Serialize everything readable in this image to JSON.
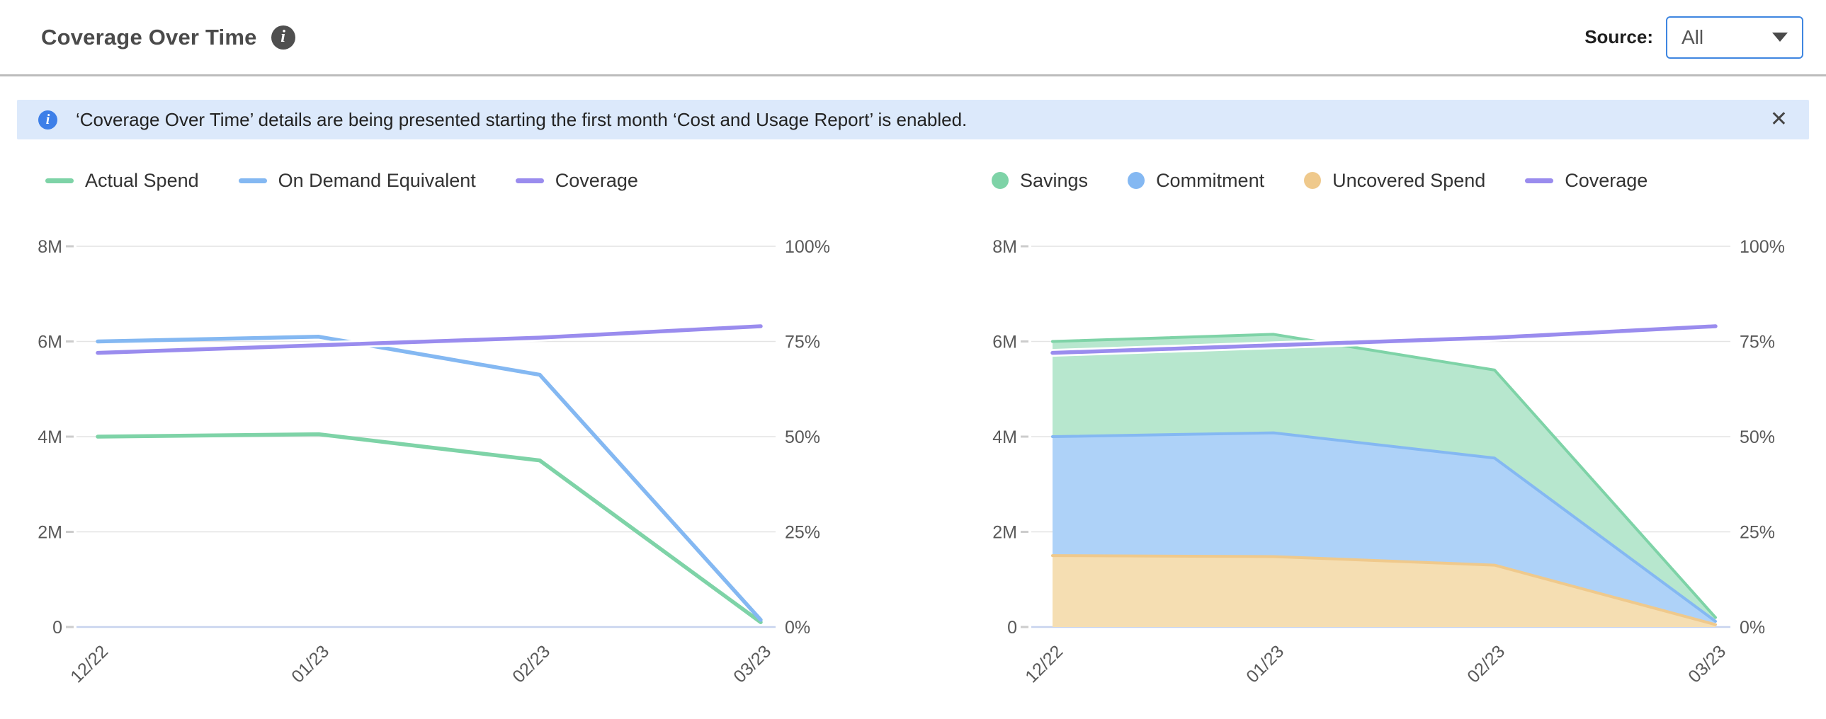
{
  "header": {
    "title": "Coverage Over Time",
    "source_label": "Source:",
    "source_value": "All"
  },
  "icons": {
    "info": "i",
    "close": "✕"
  },
  "banner": {
    "text": "‘Coverage Over Time’ details are being presented starting the first month ‘Cost and Usage Report’ is enabled."
  },
  "colors": {
    "green": "#7ed3a7",
    "blue": "#84b8f2",
    "purple": "#9a8cee",
    "orange": "#efc98c",
    "green_fill": "#b7e7ce",
    "blue_fill": "#aed2f8",
    "orange_fill": "#f5deb2",
    "gridline": "#e4e4e4",
    "zero_line": "#c7d3ee",
    "tick": "#cccccc",
    "axis_text": "#595959",
    "banner_bg": "#dce9fb",
    "banner_icon_bg": "#3d7fe8",
    "dropdown_border": "#3f86e0",
    "divider": "#bcbcbc"
  },
  "chart_data": [
    {
      "type": "line",
      "title": "",
      "categories": [
        "12/22",
        "01/23",
        "02/23",
        "03/23"
      ],
      "grid": true,
      "legend_position": "top",
      "y_left": {
        "label": "",
        "ticks": [
          "8M",
          "6M",
          "4M",
          "2M",
          "0"
        ],
        "min": 0,
        "max": 8,
        "unit": "M"
      },
      "y_right": {
        "label": "",
        "ticks": [
          "100%",
          "75%",
          "50%",
          "25%",
          "0%"
        ],
        "min": 0,
        "max": 100,
        "unit": "%"
      },
      "series": [
        {
          "name": "Actual Spend",
          "marker": "line",
          "axis": "left",
          "color": "#7ed3a7",
          "values": [
            4.0,
            4.05,
            3.5,
            0.1
          ]
        },
        {
          "name": "On Demand Equivalent",
          "marker": "line",
          "axis": "left",
          "color": "#84b8f2",
          "values": [
            6.0,
            6.1,
            5.3,
            0.15
          ]
        },
        {
          "name": "Coverage",
          "marker": "line",
          "axis": "right",
          "color": "#9a8cee",
          "values": [
            72,
            74,
            76,
            79
          ]
        }
      ]
    },
    {
      "type": "area",
      "stacked": true,
      "title": "",
      "categories": [
        "12/22",
        "01/23",
        "02/23",
        "03/23"
      ],
      "grid": true,
      "legend_position": "top",
      "stack_order_bottom_to_top": [
        "Uncovered Spend",
        "Commitment",
        "Savings"
      ],
      "y_left": {
        "label": "",
        "ticks": [
          "8M",
          "6M",
          "4M",
          "2M",
          "0"
        ],
        "min": 0,
        "max": 8,
        "unit": "M"
      },
      "y_right": {
        "label": "",
        "ticks": [
          "100%",
          "75%",
          "50%",
          "25%",
          "0%"
        ],
        "min": 0,
        "max": 100,
        "unit": "%"
      },
      "series": [
        {
          "name": "Savings",
          "kind": "area",
          "marker": "circle",
          "axis": "left",
          "color": "#7ed3a7",
          "fill": "#b7e7ce",
          "values": [
            2.0,
            2.07,
            1.85,
            0.08
          ]
        },
        {
          "name": "Commitment",
          "kind": "area",
          "marker": "circle",
          "axis": "left",
          "color": "#84b8f2",
          "fill": "#aed2f8",
          "values": [
            2.5,
            2.6,
            2.25,
            0.07
          ]
        },
        {
          "name": "Uncovered Spend",
          "kind": "area",
          "marker": "circle",
          "axis": "left",
          "color": "#efc98c",
          "fill": "#f5deb2",
          "values": [
            1.5,
            1.48,
            1.3,
            0.05
          ]
        },
        {
          "name": "Coverage",
          "kind": "line",
          "marker": "line",
          "axis": "right",
          "color": "#9a8cee",
          "values": [
            72,
            74,
            76,
            79
          ]
        }
      ]
    }
  ]
}
